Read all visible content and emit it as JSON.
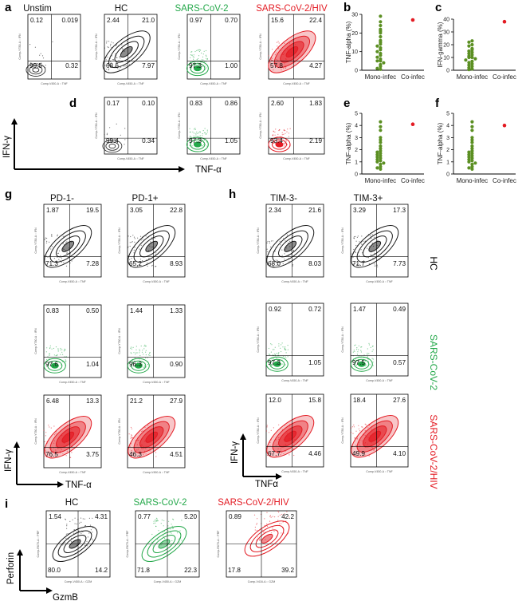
{
  "colors": {
    "hc": "#1a1a1a",
    "sars": "#24a84a",
    "hiv": "#e31b23",
    "mono": "#5b8f22",
    "co": "#e31b23"
  },
  "panels": {
    "a": {
      "label": "a",
      "titles": [
        "Unstim",
        "HC",
        "SARS-CoV-2",
        "SARS-CoV-2/HIV"
      ]
    },
    "b": {
      "label": "b",
      "ylabel": "TNF-alpha (%)"
    },
    "c": {
      "label": "c",
      "ylabel": "IFN-gamma (%)"
    },
    "d": {
      "label": "d"
    },
    "e": {
      "label": "e",
      "ylabel": "TNF-alpha (%)"
    },
    "f": {
      "label": "f",
      "ylabel": "TNF-alpha (%)"
    },
    "g": {
      "label": "g",
      "titles": [
        "PD-1-",
        "PD-1+"
      ]
    },
    "h": {
      "label": "h",
      "titles": [
        "TIM-3-",
        "TIM-3+"
      ]
    },
    "i": {
      "label": "i",
      "titles": [
        "HC",
        "SARS-CoV-2",
        "SARS-CoV-2/HIV"
      ]
    }
  },
  "group_labels": [
    "HC",
    "SARS-CoV-2",
    "SARS-CoV-2/HIV"
  ],
  "axes": {
    "ifn": "IFN-γ",
    "tnf": "TNF-α",
    "tnf_h": "TNFα",
    "perforin": "Perforin",
    "gzmb": "GzmB",
    "comp_ifn": "Comp-Y780-A :: IFN",
    "comp_tnf": "Comp-V450-A :: TNF",
    "comp_prf": "Comp-R670-A :: PRF",
    "comp_gzm": "Comp-V450-A :: GZM",
    "comp_gzm2": "Comp-V416-A :: GZM"
  },
  "chart_data": [
    {
      "type": "scatter",
      "panel": "a",
      "description_of_data": "flow cytometry quadrant percentages [upper-left, upper-right, lower-left, lower-right]",
      "plots": [
        {
          "title": "Unstim",
          "quadrants": [
            "0.12",
            "0.019",
            "99.5",
            "0.32"
          ]
        },
        {
          "title": "HC",
          "quadrants": [
            "2.44",
            "21.0",
            "68.6",
            "7.97"
          ]
        },
        {
          "title": "SARS-CoV-2",
          "quadrants": [
            "0.97",
            "0.70",
            "97.3",
            "1.00"
          ]
        },
        {
          "title": "SARS-CoV-2/HIV",
          "quadrants": [
            "15.6",
            "22.4",
            "57.8",
            "4.27"
          ]
        }
      ]
    },
    {
      "type": "scatter",
      "panel": "d",
      "plots": [
        {
          "quadrants": [
            "0.17",
            "0.10",
            "99.4",
            "0.34"
          ]
        },
        {
          "quadrants": [
            "0.83",
            "0.86",
            "97.3",
            "1.05"
          ]
        },
        {
          "quadrants": [
            "2.60",
            "1.83",
            "93.4",
            "2.19"
          ]
        }
      ]
    },
    {
      "type": "scatter",
      "panel": "b",
      "ylabel": "TNF-alpha (%)",
      "ylim": [
        0,
        30
      ],
      "yticks": [
        "0",
        "10",
        "20",
        "30"
      ],
      "categories": [
        "Mono-infec",
        "Co-infec"
      ],
      "series": [
        {
          "name": "Mono-infec",
          "values": [
            29,
            26,
            24,
            22,
            21,
            20,
            18,
            16,
            15,
            14,
            13,
            12,
            11,
            10,
            9,
            8,
            7,
            6,
            5,
            5,
            4,
            3,
            2,
            1,
            0.5
          ]
        },
        {
          "name": "Co-infec",
          "values": [
            27
          ]
        }
      ]
    },
    {
      "type": "scatter",
      "panel": "c",
      "ylabel": "IFN-gamma (%)",
      "ylim": [
        0,
        40
      ],
      "yticks": [
        "0",
        "10",
        "20",
        "30",
        "40"
      ],
      "categories": [
        "Mono-infec",
        "Co-infec"
      ],
      "series": [
        {
          "name": "Mono-infec",
          "values": [
            23,
            22,
            20,
            19,
            17,
            16,
            15,
            14,
            13,
            12,
            11,
            10,
            10,
            9,
            8,
            7,
            6,
            5,
            4,
            3,
            2,
            1,
            0.5
          ]
        },
        {
          "name": "Co-infec",
          "values": [
            38
          ]
        }
      ]
    },
    {
      "type": "scatter",
      "panel": "e",
      "ylabel": "TNF-alpha (%)",
      "ylim": [
        0,
        5
      ],
      "yticks": [
        "0",
        "1",
        "2",
        "3",
        "4",
        "5"
      ],
      "categories": [
        "Mono-infec",
        "Co-infec"
      ],
      "series": [
        {
          "name": "Mono-infec",
          "values": [
            4.3,
            3.9,
            3.6,
            3.0,
            2.8,
            2.6,
            2.3,
            2.1,
            1.9,
            1.8,
            1.7,
            1.6,
            1.5,
            1.4,
            1.3,
            1.2,
            1.1,
            1.0,
            0.9,
            0.8,
            0.6,
            0.5,
            0.4
          ]
        },
        {
          "name": "Co-infec",
          "values": [
            4.1
          ]
        }
      ]
    },
    {
      "type": "scatter",
      "panel": "f",
      "ylabel": "TNF-alpha (%)",
      "ylim": [
        0,
        5
      ],
      "yticks": [
        "0",
        "1",
        "2",
        "3",
        "4",
        "5"
      ],
      "categories": [
        "Mono-infec",
        "Co-infec"
      ],
      "series": [
        {
          "name": "Mono-infec",
          "values": [
            4.3,
            3.9,
            3.6,
            3.0,
            2.8,
            2.6,
            2.3,
            2.1,
            1.9,
            1.8,
            1.7,
            1.6,
            1.5,
            1.4,
            1.3,
            1.2,
            1.1,
            1.0,
            0.9,
            0.8,
            0.6,
            0.5,
            0.4
          ]
        },
        {
          "name": "Co-infec",
          "values": [
            4.0
          ]
        }
      ]
    },
    {
      "type": "scatter",
      "panel": "g",
      "plots": [
        {
          "title": "PD-1-",
          "group": "HC",
          "quadrants": [
            "1.87",
            "19.5",
            "71.3",
            "7.28"
          ]
        },
        {
          "title": "PD-1+",
          "group": "HC",
          "quadrants": [
            "3.05",
            "22.8",
            "65.2",
            "8.93"
          ]
        },
        {
          "title": "PD-1-",
          "group": "SARS-CoV-2",
          "quadrants": [
            "0.83",
            "0.50",
            "97.6",
            "1.04"
          ]
        },
        {
          "title": "PD-1+",
          "group": "SARS-CoV-2",
          "quadrants": [
            "1.44",
            "1.33",
            "96.3",
            "0.90"
          ]
        },
        {
          "title": "PD-1-",
          "group": "SARS-CoV-2/HIV",
          "quadrants": [
            "6.48",
            "13.3",
            "76.5",
            "3.75"
          ]
        },
        {
          "title": "PD-1+",
          "group": "SARS-CoV-2/HIV",
          "quadrants": [
            "21.2",
            "27.9",
            "46.3",
            "4.51"
          ]
        }
      ]
    },
    {
      "type": "scatter",
      "panel": "h",
      "plots": [
        {
          "title": "TIM-3-",
          "group": "HC",
          "quadrants": [
            "2.34",
            "21.6",
            "68.0",
            "8.03"
          ]
        },
        {
          "title": "TIM-3+",
          "group": "HC",
          "quadrants": [
            "3.29",
            "17.3",
            "71.7",
            "7.73"
          ]
        },
        {
          "title": "TIM-3-",
          "group": "SARS-CoV-2",
          "quadrants": [
            "0.92",
            "0.72",
            "97.3",
            "1.05"
          ]
        },
        {
          "title": "TIM-3+",
          "group": "SARS-CoV-2",
          "quadrants": [
            "1.47",
            "0.49",
            "97.5",
            "0.57"
          ]
        },
        {
          "title": "TIM-3-",
          "group": "SARS-CoV-2/HIV",
          "quadrants": [
            "12.0",
            "15.8",
            "67.7",
            "4.46"
          ]
        },
        {
          "title": "TIM-3+",
          "group": "SARS-CoV-2/HIV",
          "quadrants": [
            "18.4",
            "27.6",
            "49.9",
            "4.10"
          ]
        }
      ]
    },
    {
      "type": "scatter",
      "panel": "i",
      "plots": [
        {
          "title": "HC",
          "quadrants": [
            "1.54",
            "4.31",
            "80.0",
            "14.2"
          ]
        },
        {
          "title": "SARS-CoV-2",
          "quadrants": [
            "0.77",
            "5.20",
            "71.8",
            "22.3"
          ]
        },
        {
          "title": "SARS-CoV-2/HIV",
          "quadrants": [
            "0.89",
            "42.2",
            "17.8",
            "39.2"
          ]
        }
      ]
    }
  ]
}
